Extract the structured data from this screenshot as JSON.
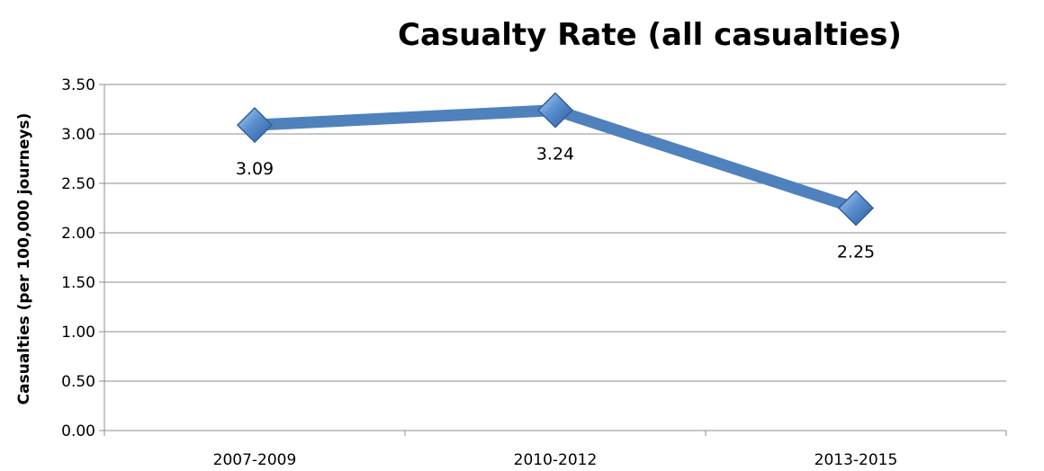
{
  "chart_data": {
    "type": "line",
    "title": "Casualty Rate (all casualties)",
    "xlabel": "",
    "ylabel": "Casualties (per 100,000 journeys)",
    "categories": [
      "2007-2009",
      "2010-2012",
      "2013-2015"
    ],
    "series": [
      {
        "values": [
          3.09,
          3.24,
          2.25
        ],
        "data_labels": [
          "3.09",
          "3.24",
          "2.25"
        ],
        "color": "#4f81bd",
        "marker": "diamond"
      }
    ],
    "ylim": [
      0,
      3.5
    ],
    "yticks": [
      "0.00",
      "0.50",
      "1.00",
      "1.50",
      "2.00",
      "2.50",
      "3.00",
      "3.50"
    ],
    "grid": true,
    "legend": "none"
  }
}
